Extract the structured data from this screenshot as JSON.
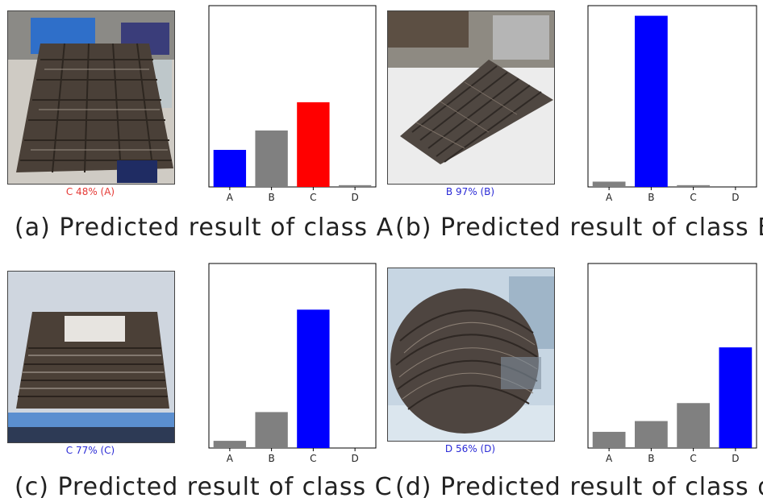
{
  "panels": [
    {
      "id": "a",
      "prediction_label": "C 48% (A)",
      "prediction_color": "#e53935",
      "caption": "(a) Predicted result of class A"
    },
    {
      "id": "b",
      "prediction_label": "B 97% (B)",
      "prediction_color": "#2b2bd6",
      "caption": "(b) Predicted result of class B"
    },
    {
      "id": "c",
      "prediction_label": "C 77% (C)",
      "prediction_color": "#2b2bd6",
      "caption": "(c) Predicted result of class C"
    },
    {
      "id": "d",
      "prediction_label": "D 56% (D)",
      "prediction_color": "#2b2bd6",
      "caption": "(d) Predicted result of class d"
    }
  ],
  "chart_data": [
    {
      "type": "bar",
      "categories": [
        "A",
        "B",
        "C",
        "D"
      ],
      "values": [
        0.21,
        0.32,
        0.48,
        0.01
      ],
      "colors": [
        "#0000ff",
        "#808080",
        "#ff0000",
        "#808080"
      ],
      "ylim": [
        0,
        1.0
      ],
      "grid": false
    },
    {
      "type": "bar",
      "categories": [
        "A",
        "B",
        "C",
        "D"
      ],
      "values": [
        0.03,
        0.97,
        0.01,
        0.0
      ],
      "colors": [
        "#808080",
        "#0000ff",
        "#808080",
        "#808080"
      ],
      "ylim": [
        0,
        1.0
      ],
      "grid": false
    },
    {
      "type": "bar",
      "categories": [
        "A",
        "B",
        "C",
        "D"
      ],
      "values": [
        0.04,
        0.2,
        0.77,
        0.0
      ],
      "colors": [
        "#808080",
        "#808080",
        "#0000ff",
        "#808080"
      ],
      "ylim": [
        0,
        1.0
      ],
      "grid": false
    },
    {
      "type": "bar",
      "categories": [
        "A",
        "B",
        "C",
        "D"
      ],
      "values": [
        0.09,
        0.15,
        0.25,
        0.56
      ],
      "colors": [
        "#808080",
        "#808080",
        "#808080",
        "#0000ff"
      ],
      "ylim": [
        0,
        1.0
      ],
      "grid": false
    }
  ]
}
